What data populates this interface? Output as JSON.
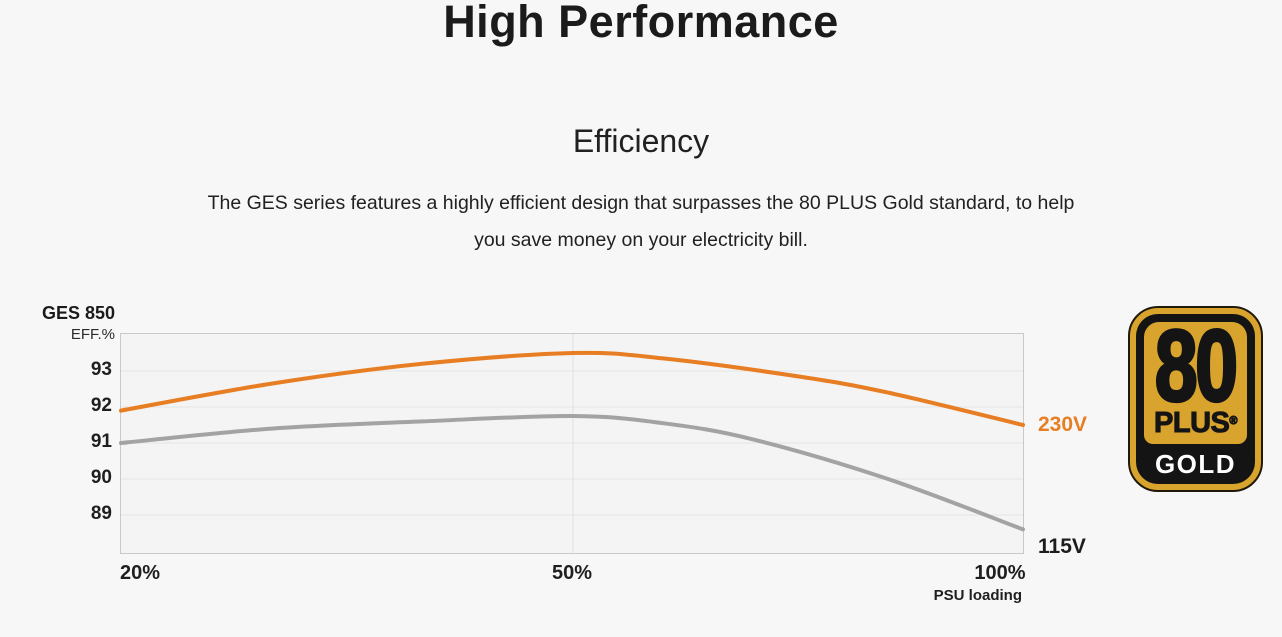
{
  "page": {
    "background": "#f7f7f7"
  },
  "header": {
    "title": "High Performance"
  },
  "section": {
    "heading": "Efficiency",
    "description_line1": "The GES series features a highly efficient design that surpasses the 80 PLUS Gold standard, to help",
    "description_line2": "you save money on your electricity bill."
  },
  "chart_data": {
    "type": "line",
    "title": "GES 850",
    "y_axis_label": "EFF.%",
    "x_axis_label": "PSU loading",
    "x_ticks": [
      "20%",
      "50%",
      "100%"
    ],
    "y_ticks": [
      "93",
      "92",
      "91",
      "90",
      "89"
    ],
    "ylim": [
      88,
      94.1
    ],
    "x_range_percent": [
      20,
      100
    ],
    "x_scale_note": "x axis anchors: 20% at left edge, 50% at horizontal midpoint, 100% at right edge",
    "grid": true,
    "legend_position": "labels at right ends of lines",
    "series": [
      {
        "name": "230V",
        "color": "#E87E23",
        "points": [
          [
            20,
            91.9
          ],
          [
            30,
            92.65
          ],
          [
            40,
            93.2
          ],
          [
            50,
            93.5
          ],
          [
            60,
            93.35
          ],
          [
            75,
            92.85
          ],
          [
            85,
            92.4
          ],
          [
            100,
            91.5
          ]
        ]
      },
      {
        "name": "115V",
        "color": "#A3A3A3",
        "points": [
          [
            20,
            91.0
          ],
          [
            30,
            91.4
          ],
          [
            40,
            91.6
          ],
          [
            50,
            91.75
          ],
          [
            60,
            91.55
          ],
          [
            70,
            91.1
          ],
          [
            85,
            90.0
          ],
          [
            100,
            88.6
          ]
        ]
      }
    ]
  },
  "badge": {
    "number": "80",
    "plus": "PLUS",
    "registered": "®",
    "tier": "GOLD",
    "gold_color": "#D9A42E",
    "black_color": "#141414",
    "tier_text_color": "#ffffff"
  }
}
